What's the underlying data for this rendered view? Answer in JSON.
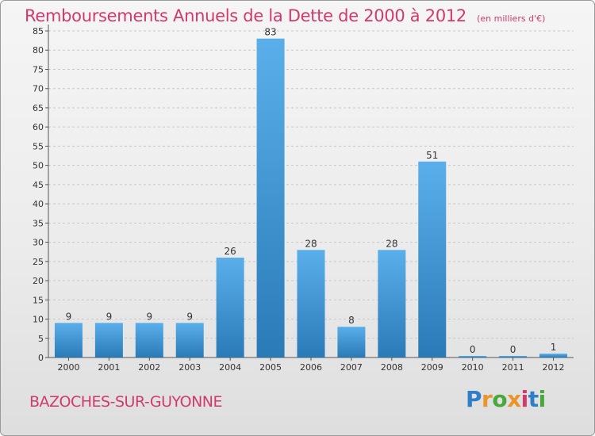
{
  "header": {
    "title": "Remboursements Annuels de la Dette de 2000 à 2012",
    "subtitle": "(en milliers d'€)"
  },
  "footer": {
    "commune": "BAZOCHES-SUR-GUYONNE",
    "logo_text": "Proxiti"
  },
  "colors": {
    "title": "#d03a6e",
    "bar_light": "#5aafea",
    "bar_dark": "#2a7ab8",
    "grid": "#c8c8c8",
    "logo": [
      "#2f7fc8",
      "#e8952a",
      "#49a83c",
      "#e8952a",
      "#d03a6e",
      "#2f7fc8",
      "#49a83c"
    ]
  },
  "chart_data": {
    "type": "bar",
    "categories": [
      "2000",
      "2001",
      "2002",
      "2003",
      "2004",
      "2005",
      "2006",
      "2007",
      "2008",
      "2009",
      "2010",
      "2011",
      "2012"
    ],
    "values": [
      9,
      9,
      9,
      9,
      26,
      83,
      28,
      8,
      28,
      51,
      0,
      0,
      1
    ],
    "ylim": [
      0,
      85
    ],
    "yticks": [
      0,
      5,
      10,
      15,
      20,
      25,
      30,
      35,
      40,
      45,
      50,
      55,
      60,
      65,
      70,
      75,
      80,
      85
    ],
    "grid": true,
    "xlabel": "",
    "ylabel": ""
  }
}
